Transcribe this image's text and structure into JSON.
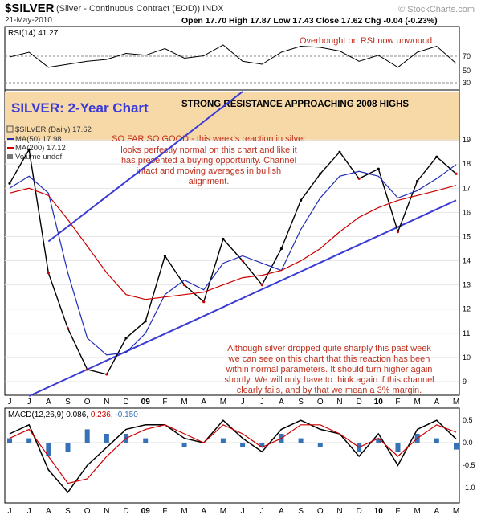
{
  "header": {
    "symbol": "$SILVER",
    "description": "(Silver - Continuous Contract (EOD)) INDX",
    "date": "21-May-2010",
    "ohlc": "Open 17.70  High 17.87  Low 17.43  Close 17.62  Chg -0.04 (-0.23%)",
    "watermark": "© StockCharts.com"
  },
  "rsi": {
    "label": "RSI(14) 41.27",
    "annotation": "Overbought on RSI now unwound",
    "ticks": [
      "70",
      "50",
      "30"
    ]
  },
  "price": {
    "title": "SILVER: 2-Year Chart",
    "resistance_text": "STRONG RESISTANCE APPROACHING 2008 HIGHS",
    "legend": {
      "daily": "$SILVER (Daily) 17.62",
      "ma50": "MA(50) 17.98",
      "ma200": "MA(200) 17.12",
      "volume": "Volume undef"
    },
    "annotation1": [
      "SO FAR SO GOOD - this week's reaction in silver",
      "looks perfectly normal on this chart and like it",
      "has presented a buying opportunity. Channel",
      "intact and moving averages in bullish",
      "alignment."
    ],
    "annotation2": [
      "Although silver dropped quite sharply this past week",
      "we can see on this chart that this reaction has been",
      "within normal parameters. It should turn higher again",
      "shortly. We will only have to think again if this channel",
      "clearly fails, and by that we mean a 3% margin."
    ]
  },
  "x_axis": [
    "J",
    "J",
    "A",
    "S",
    "O",
    "N",
    "D",
    "09",
    "F",
    "M",
    "A",
    "M",
    "J",
    "J",
    "A",
    "S",
    "O",
    "N",
    "D",
    "10",
    "F",
    "M",
    "A",
    "M"
  ],
  "macd": {
    "label_prefix": "MACD(12,26,9) 0.086, ",
    "label_signal": "0.236",
    "label_hist": "-0.150",
    "ticks": [
      "0.5",
      "0.0",
      "-0.5",
      "-1.0"
    ]
  },
  "colors": {
    "price_up": "#000000",
    "price_down": "#cc0000",
    "ma50": "#1f2db5",
    "ma200": "#cc0000",
    "channel": "#3a3ad6",
    "resistance_band": "#f7d9a8",
    "annotation": "#c0301e",
    "title_blue": "#3a3ad6",
    "macd_line": "#000000",
    "macd_signal": "#cc0000",
    "macd_hist": "#3572b8"
  },
  "chart_data": {
    "type": "line",
    "title": "SILVER: 2-Year Chart",
    "x": [
      "Jun-08",
      "Jul-08",
      "Aug-08",
      "Sep-08",
      "Oct-08",
      "Nov-08",
      "Dec-08",
      "Jan-09",
      "Feb-09",
      "Mar-09",
      "Apr-09",
      "May-09",
      "Jun-09",
      "Jul-09",
      "Aug-09",
      "Sep-09",
      "Oct-09",
      "Nov-09",
      "Dec-09",
      "Jan-10",
      "Feb-10",
      "Mar-10",
      "Apr-10",
      "May-10"
    ],
    "series": [
      {
        "name": "$SILVER (Daily) 17.62",
        "values": [
          17.2,
          18.6,
          13.5,
          11.2,
          9.5,
          9.3,
          10.8,
          11.5,
          14.2,
          13.0,
          12.3,
          14.9,
          14.0,
          13.0,
          14.5,
          16.5,
          17.6,
          18.5,
          17.4,
          17.8,
          15.2,
          17.3,
          18.3,
          17.6
        ]
      },
      {
        "name": "MA(50) 17.98",
        "values": [
          17.0,
          17.5,
          16.8,
          13.5,
          10.8,
          10.1,
          10.2,
          11.0,
          12.6,
          13.2,
          12.8,
          13.9,
          14.2,
          13.9,
          13.6,
          15.3,
          16.6,
          17.5,
          17.7,
          17.5,
          16.6,
          16.9,
          17.4,
          17.98
        ]
      },
      {
        "name": "MA(200) 17.12",
        "values": [
          16.8,
          17.0,
          16.7,
          15.7,
          14.6,
          13.5,
          12.6,
          12.4,
          12.5,
          12.6,
          12.7,
          13.0,
          13.3,
          13.4,
          13.6,
          14.0,
          14.5,
          15.2,
          15.8,
          16.2,
          16.5,
          16.7,
          16.9,
          17.12
        ]
      }
    ],
    "ylim": [
      8.5,
      21
    ],
    "yticks": [
      9,
      10,
      11,
      12,
      13,
      14,
      15,
      16,
      17,
      18,
      19
    ],
    "channel": {
      "upper": [
        [
          2,
          14.8
        ],
        [
          12,
          21
        ]
      ],
      "lower": [
        [
          1,
          8.4
        ],
        [
          23,
          16.5
        ]
      ]
    },
    "rsi_values": [
      52,
      60,
      35,
      40,
      45,
      48,
      58,
      55,
      66,
      50,
      54,
      72,
      45,
      40,
      60,
      70,
      68,
      62,
      45,
      55,
      35,
      60,
      70,
      41.27
    ],
    "macd_values": [
      0.2,
      0.4,
      -0.6,
      -1.1,
      -0.5,
      -0.1,
      0.3,
      0.4,
      0.4,
      0.1,
      0.0,
      0.5,
      0.1,
      -0.2,
      0.3,
      0.5,
      0.3,
      0.2,
      -0.3,
      0.2,
      -0.5,
      0.3,
      0.5,
      0.086
    ],
    "macd_signal": [
      0.1,
      0.3,
      -0.3,
      -0.9,
      -0.8,
      -0.3,
      0.1,
      0.3,
      0.4,
      0.2,
      0.0,
      0.4,
      0.2,
      -0.1,
      0.1,
      0.4,
      0.4,
      0.2,
      -0.1,
      0.1,
      -0.3,
      0.1,
      0.4,
      0.236
    ]
  }
}
